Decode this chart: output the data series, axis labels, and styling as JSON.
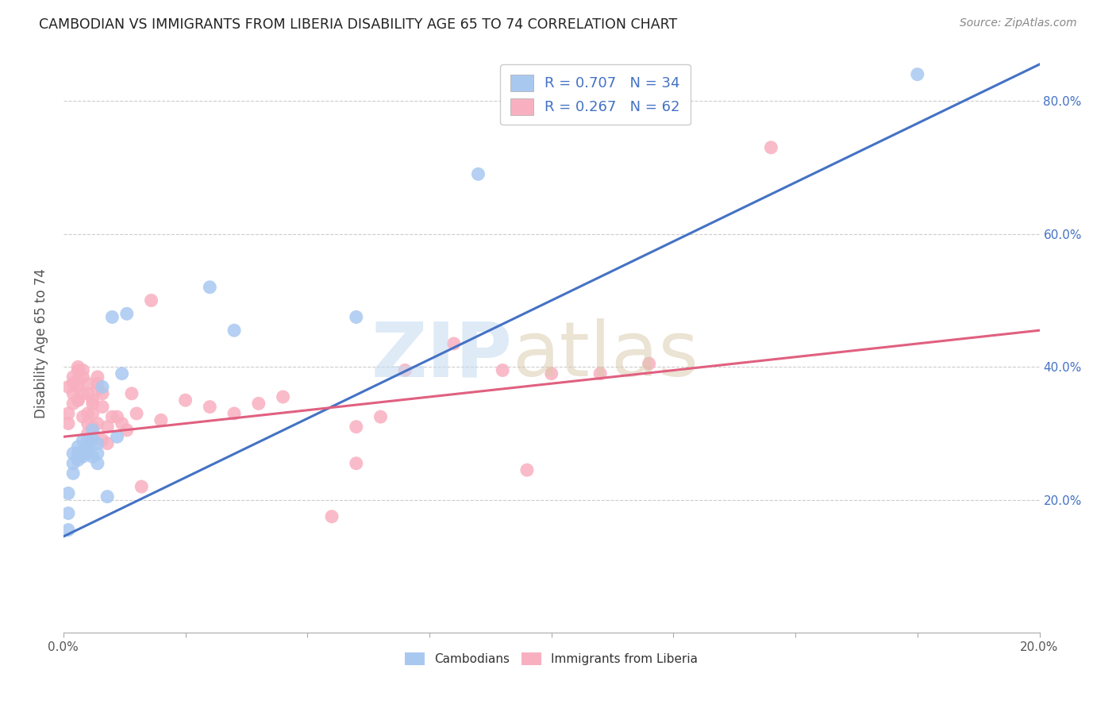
{
  "title": "CAMBODIAN VS IMMIGRANTS FROM LIBERIA DISABILITY AGE 65 TO 74 CORRELATION CHART",
  "source": "Source: ZipAtlas.com",
  "ylabel": "Disability Age 65 to 74",
  "ytick_values": [
    0.2,
    0.4,
    0.6,
    0.8
  ],
  "xlim": [
    0.0,
    0.2
  ],
  "ylim": [
    0.0,
    0.87
  ],
  "legend_blue_label": "R = 0.707   N = 34",
  "legend_pink_label": "R = 0.267   N = 62",
  "cambodian_color": "#a8c8f0",
  "liberia_color": "#f8b0c0",
  "line_color_blue": "#4472c4",
  "line_color_pink": "#e06080",
  "blue_line_x0": 0.0,
  "blue_line_y0": 0.145,
  "blue_line_x1": 0.2,
  "blue_line_y1": 0.855,
  "pink_line_x0": 0.0,
  "pink_line_y0": 0.295,
  "pink_line_x1": 0.2,
  "pink_line_y1": 0.455,
  "cambodian_scatter_x": [
    0.001,
    0.001,
    0.001,
    0.002,
    0.002,
    0.002,
    0.003,
    0.003,
    0.003,
    0.003,
    0.004,
    0.004,
    0.004,
    0.005,
    0.005,
    0.005,
    0.005,
    0.006,
    0.006,
    0.006,
    0.007,
    0.007,
    0.007,
    0.008,
    0.009,
    0.01,
    0.011,
    0.012,
    0.013,
    0.03,
    0.035,
    0.06,
    0.085,
    0.175
  ],
  "cambodian_scatter_y": [
    0.21,
    0.18,
    0.155,
    0.24,
    0.27,
    0.255,
    0.265,
    0.28,
    0.26,
    0.27,
    0.275,
    0.265,
    0.29,
    0.28,
    0.275,
    0.27,
    0.29,
    0.29,
    0.265,
    0.305,
    0.285,
    0.255,
    0.27,
    0.37,
    0.205,
    0.475,
    0.295,
    0.39,
    0.48,
    0.52,
    0.455,
    0.475,
    0.69,
    0.84
  ],
  "liberia_scatter_x": [
    0.001,
    0.001,
    0.001,
    0.002,
    0.002,
    0.002,
    0.002,
    0.003,
    0.003,
    0.003,
    0.003,
    0.003,
    0.003,
    0.004,
    0.004,
    0.004,
    0.004,
    0.005,
    0.005,
    0.005,
    0.005,
    0.005,
    0.006,
    0.006,
    0.006,
    0.006,
    0.006,
    0.007,
    0.007,
    0.007,
    0.007,
    0.008,
    0.008,
    0.008,
    0.009,
    0.009,
    0.01,
    0.011,
    0.012,
    0.013,
    0.014,
    0.015,
    0.016,
    0.018,
    0.02,
    0.025,
    0.03,
    0.035,
    0.04,
    0.045,
    0.055,
    0.06,
    0.065,
    0.07,
    0.08,
    0.09,
    0.095,
    0.1,
    0.11,
    0.12,
    0.145,
    0.06
  ],
  "liberia_scatter_y": [
    0.315,
    0.33,
    0.37,
    0.345,
    0.36,
    0.385,
    0.375,
    0.35,
    0.37,
    0.395,
    0.38,
    0.35,
    0.4,
    0.325,
    0.36,
    0.385,
    0.395,
    0.3,
    0.315,
    0.33,
    0.36,
    0.375,
    0.31,
    0.33,
    0.295,
    0.35,
    0.345,
    0.365,
    0.385,
    0.375,
    0.315,
    0.34,
    0.36,
    0.29,
    0.31,
    0.285,
    0.325,
    0.325,
    0.315,
    0.305,
    0.36,
    0.33,
    0.22,
    0.5,
    0.32,
    0.35,
    0.34,
    0.33,
    0.345,
    0.355,
    0.175,
    0.31,
    0.325,
    0.395,
    0.435,
    0.395,
    0.245,
    0.39,
    0.39,
    0.405,
    0.73,
    0.255
  ],
  "background_color": "#ffffff",
  "grid_color": "#cccccc",
  "right_axis_color": "#4472c4",
  "title_color": "#222222",
  "source_color": "#888888",
  "ylabel_color": "#555555"
}
